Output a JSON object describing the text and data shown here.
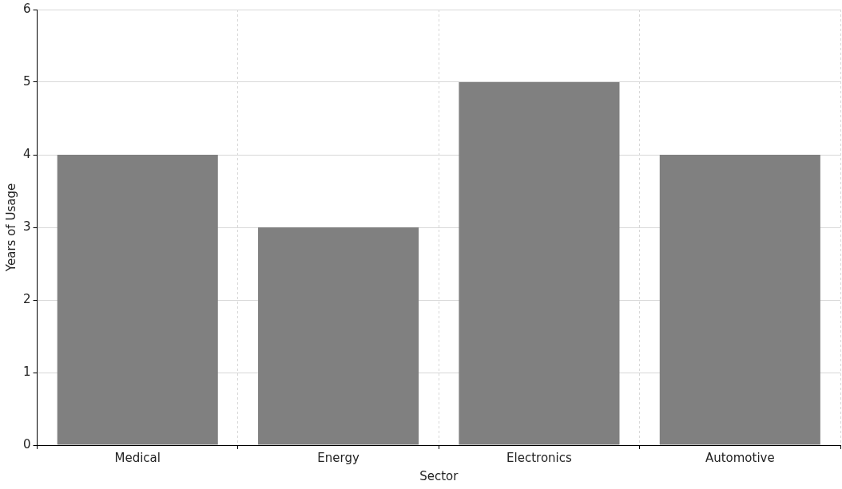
{
  "chart_data": {
    "type": "bar",
    "xlabel": "Sector",
    "ylabel": "Years of Usage",
    "categories": [
      "Medical",
      "Energy",
      "Electronics",
      "Automotive"
    ],
    "values": [
      4,
      3,
      5,
      4
    ],
    "color": "#808080",
    "ylim": [
      0,
      6
    ],
    "yticks": [
      0,
      1,
      2,
      3,
      4,
      5,
      6
    ],
    "grid": true
  }
}
